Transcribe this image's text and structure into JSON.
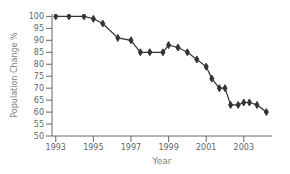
{
  "chart_data": {
    "type": "line",
    "xlabel": "Year",
    "ylabel": "Population Change %",
    "x": [
      1993,
      1993.7,
      1994.5,
      1995,
      1995.5,
      1996.3,
      1997,
      1997.5,
      1998,
      1998.7,
      1999,
      1999.5,
      2000,
      2000.5,
      2001,
      2001.3,
      2001.7,
      2002,
      2002.3,
      2002.7,
      2003,
      2003.3,
      2003.7,
      2004.2
    ],
    "values": [
      100,
      100,
      100,
      99,
      97,
      91,
      90,
      85,
      85,
      85,
      88,
      87,
      85,
      82,
      79,
      74,
      70,
      70,
      63,
      63,
      64,
      64,
      63,
      60
    ],
    "xlim": [
      1992.8,
      2004.5
    ],
    "ylim": [
      50,
      101
    ],
    "xticks": [
      1993,
      1995,
      1997,
      1999,
      2001,
      2003
    ],
    "yticks": [
      50,
      55,
      60,
      65,
      70,
      75,
      80,
      85,
      90,
      95,
      100
    ],
    "color": "#333333",
    "marker": "diamond",
    "grid": false
  }
}
